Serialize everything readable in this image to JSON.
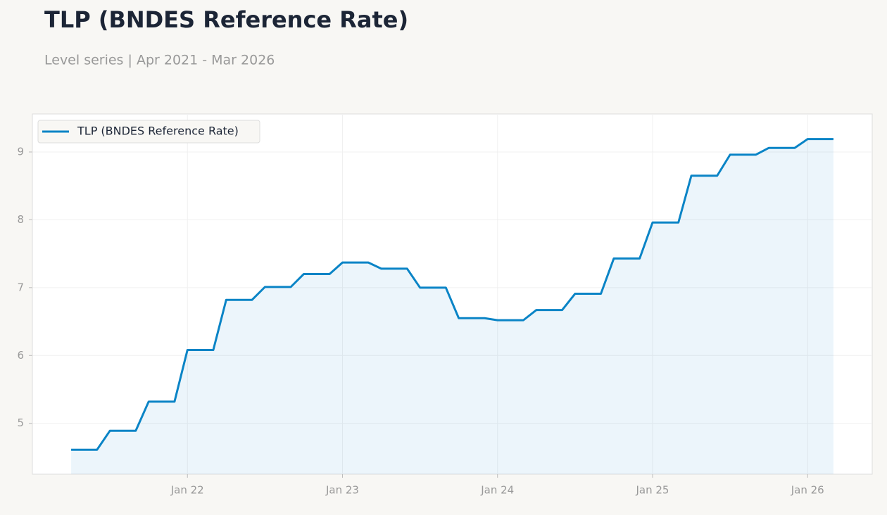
{
  "chart_data": {
    "type": "line",
    "title": "TLP (BNDES Reference Rate)",
    "subtitle": "Level series | Apr 2021 - Mar 2026",
    "x": [
      "2021-04",
      "2021-05",
      "2021-06",
      "2021-07",
      "2021-08",
      "2021-09",
      "2021-10",
      "2021-11",
      "2021-12",
      "2022-01",
      "2022-02",
      "2022-03",
      "2022-04",
      "2022-05",
      "2022-06",
      "2022-07",
      "2022-08",
      "2022-09",
      "2022-10",
      "2022-11",
      "2022-12",
      "2023-01",
      "2023-02",
      "2023-03",
      "2023-04",
      "2023-05",
      "2023-06",
      "2023-07",
      "2023-08",
      "2023-09",
      "2023-10",
      "2023-11",
      "2023-12",
      "2024-01",
      "2024-02",
      "2024-03",
      "2024-04",
      "2024-05",
      "2024-06",
      "2024-07",
      "2024-08",
      "2024-09",
      "2024-10",
      "2024-11",
      "2024-12",
      "2025-01",
      "2025-02",
      "2025-03",
      "2025-04",
      "2025-05",
      "2025-06",
      "2025-07",
      "2025-08",
      "2025-09",
      "2025-10",
      "2025-11",
      "2025-12",
      "2026-01",
      "2026-02",
      "2026-03"
    ],
    "series": [
      {
        "name": "TLP (BNDES Reference Rate)",
        "color": "#0a84c6",
        "values": [
          4.61,
          4.61,
          4.61,
          4.89,
          4.89,
          4.89,
          5.32,
          5.32,
          5.32,
          6.08,
          6.08,
          6.08,
          6.82,
          6.82,
          6.82,
          7.01,
          7.01,
          7.01,
          7.2,
          7.2,
          7.2,
          7.37,
          7.37,
          7.37,
          7.28,
          7.28,
          7.28,
          7.0,
          7.0,
          7.0,
          6.55,
          6.55,
          6.55,
          6.52,
          6.52,
          6.52,
          6.67,
          6.67,
          6.67,
          6.91,
          6.91,
          6.91,
          7.43,
          7.43,
          7.43,
          7.96,
          7.96,
          7.96,
          8.65,
          8.65,
          8.65,
          8.96,
          8.96,
          8.96,
          9.06,
          9.06,
          9.06,
          9.19,
          9.19,
          9.19
        ]
      }
    ],
    "xlim": [
      "2021-01",
      "2026-06"
    ],
    "xticks": [
      {
        "value": "2022-01",
        "label": "Jan 22"
      },
      {
        "value": "2023-01",
        "label": "Jan 23"
      },
      {
        "value": "2024-01",
        "label": "Jan 24"
      },
      {
        "value": "2025-01",
        "label": "Jan 25"
      },
      {
        "value": "2026-01",
        "label": "Jan 26"
      }
    ],
    "ylim": [
      4.25,
      9.56
    ],
    "yticks": [
      5,
      6,
      7,
      8,
      9
    ],
    "grid": true,
    "legend": "upper-left"
  }
}
